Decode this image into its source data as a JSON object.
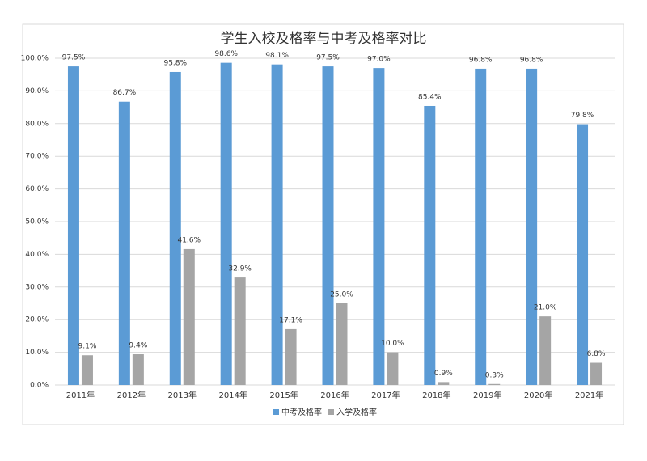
{
  "chart_data": {
    "type": "bar",
    "title": "学生入校及格率与中考及格率对比",
    "categories": [
      "2011年",
      "2012年",
      "2013年",
      "2014年",
      "2015年",
      "2016年",
      "2017年",
      "2018年",
      "2019年",
      "2020年",
      "2021年"
    ],
    "series": [
      {
        "name": "中考及格率",
        "color": "#5b9bd5",
        "values": [
          97.5,
          86.7,
          95.8,
          98.6,
          98.1,
          97.5,
          97.0,
          85.4,
          96.8,
          96.8,
          79.8
        ],
        "value_labels": [
          "97.5%",
          "86.7%",
          "95.8%",
          "98.6%",
          "98.1%",
          "97.5%",
          "97.0%",
          "85.4%",
          "96.8%",
          "96.8%",
          "79.8%"
        ]
      },
      {
        "name": "入学及格率",
        "color": "#a5a5a5",
        "values": [
          9.1,
          9.4,
          41.6,
          32.9,
          17.1,
          25.0,
          10.0,
          0.9,
          0.3,
          21.0,
          6.8
        ],
        "value_labels": [
          "9.1%",
          "9.4%",
          "41.6%",
          "32.9%",
          "17.1%",
          "25.0%",
          "10.0%",
          "0.9%",
          "0.3%",
          "21.0%",
          "6.8%"
        ]
      }
    ],
    "ylim": [
      0,
      100
    ],
    "yticks": [
      {
        "value": 0,
        "label": "0.0%"
      },
      {
        "value": 10,
        "label": "10.0%"
      },
      {
        "value": 20,
        "label": "20.0%"
      },
      {
        "value": 30,
        "label": "30.0%"
      },
      {
        "value": 40,
        "label": "40.0%"
      },
      {
        "value": 50,
        "label": "50.0%"
      },
      {
        "value": 60,
        "label": "60.0%"
      },
      {
        "value": 70,
        "label": "70.0%"
      },
      {
        "value": 80,
        "label": "80.0%"
      },
      {
        "value": 90,
        "label": "90.0%"
      },
      {
        "value": 100,
        "label": "100.0%"
      }
    ],
    "grid": true,
    "legend": "bottom"
  }
}
